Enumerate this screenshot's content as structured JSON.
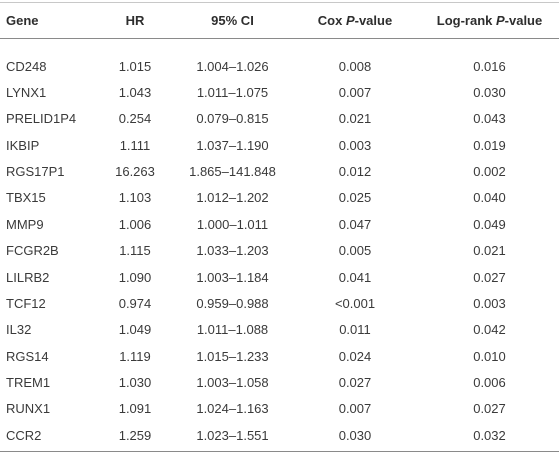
{
  "table": {
    "columns": [
      "Gene",
      "HR",
      "95% CI",
      [
        "Cox ",
        "P",
        "-value"
      ],
      [
        "Log-rank ",
        "P",
        "-value"
      ]
    ],
    "rows": [
      [
        "CD248",
        "1.015",
        "1.004–1.026",
        "0.008",
        "0.016"
      ],
      [
        "LYNX1",
        "1.043",
        "1.011–1.075",
        "0.007",
        "0.030"
      ],
      [
        "PRELID1P4",
        "0.254",
        "0.079–0.815",
        "0.021",
        "0.043"
      ],
      [
        "IKBIP",
        "1.111",
        "1.037–1.190",
        "0.003",
        "0.019"
      ],
      [
        "RGS17P1",
        "16.263",
        "1.865–141.848",
        "0.012",
        "0.002"
      ],
      [
        "TBX15",
        "1.103",
        "1.012–1.202",
        "0.025",
        "0.040"
      ],
      [
        "MMP9",
        "1.006",
        "1.000–1.011",
        "0.047",
        "0.049"
      ],
      [
        "FCGR2B",
        "1.115",
        "1.033–1.203",
        "0.005",
        "0.021"
      ],
      [
        "LILRB2",
        "1.090",
        "1.003–1.184",
        "0.041",
        "0.027"
      ],
      [
        "TCF12",
        "0.974",
        "0.959–0.988",
        "<0.001",
        "0.003"
      ],
      [
        "IL32",
        "1.049",
        "1.011–1.088",
        "0.011",
        "0.042"
      ],
      [
        "RGS14",
        "1.119",
        "1.015–1.233",
        "0.024",
        "0.010"
      ],
      [
        "TREM1",
        "1.030",
        "1.003–1.058",
        "0.027",
        "0.006"
      ],
      [
        "RUNX1",
        "1.091",
        "1.024–1.163",
        "0.007",
        "0.027"
      ],
      [
        "CCR2",
        "1.259",
        "1.023–1.551",
        "0.030",
        "0.032"
      ]
    ]
  }
}
